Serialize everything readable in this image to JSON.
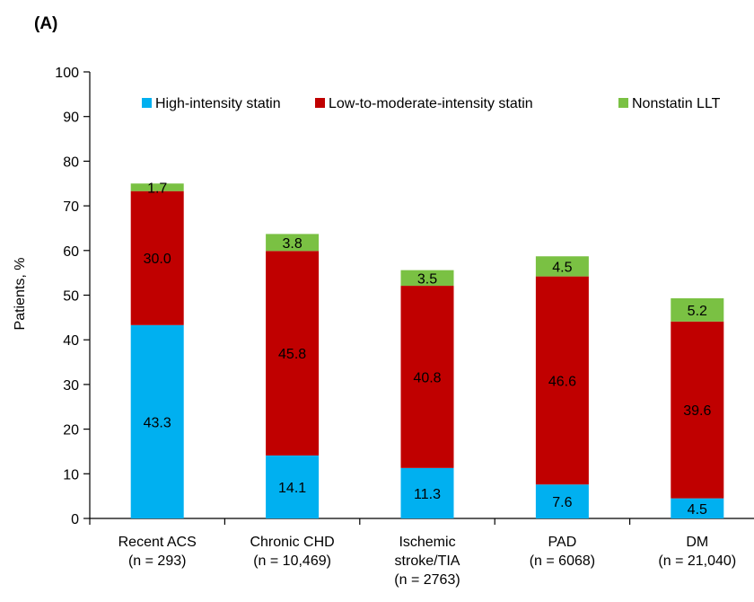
{
  "panel_label": "(A)",
  "chart_data": {
    "type": "bar",
    "stacked": true,
    "title": "",
    "xlabel": "",
    "ylabel": "Patients, %",
    "ylim": [
      0,
      100
    ],
    "yticks": [
      0,
      10,
      20,
      30,
      40,
      50,
      60,
      70,
      80,
      90,
      100
    ],
    "grid": false,
    "legend_position": "top",
    "categories": [
      [
        "Recent ACS",
        "(n = 293)"
      ],
      [
        "Chronic CHD",
        "(n = 10,469)"
      ],
      [
        "Ischemic",
        "stroke/TIA",
        "(n = 2763)"
      ],
      [
        "PAD",
        "(n = 6068)"
      ],
      [
        "DM",
        "(n = 21,040)"
      ]
    ],
    "series": [
      {
        "name": "High-intensity statin",
        "color": "#00b0f0",
        "values": [
          43.3,
          14.1,
          11.3,
          7.6,
          4.5
        ]
      },
      {
        "name": "Low-to-moderate-intensity statin",
        "color": "#c00000",
        "values": [
          30.0,
          45.8,
          40.8,
          46.6,
          39.6
        ]
      },
      {
        "name": "Nonstatin LLT",
        "color": "#7ac143",
        "values": [
          1.7,
          3.8,
          3.5,
          4.5,
          5.2
        ]
      }
    ],
    "data_labels": [
      [
        "43.3",
        "14.1",
        "11.3",
        "7.6",
        "4.5"
      ],
      [
        "30.0",
        "45.8",
        "40.8",
        "46.6",
        "39.6"
      ],
      [
        "1.7",
        "3.8",
        "3.5",
        "4.5",
        "5.2"
      ]
    ]
  }
}
